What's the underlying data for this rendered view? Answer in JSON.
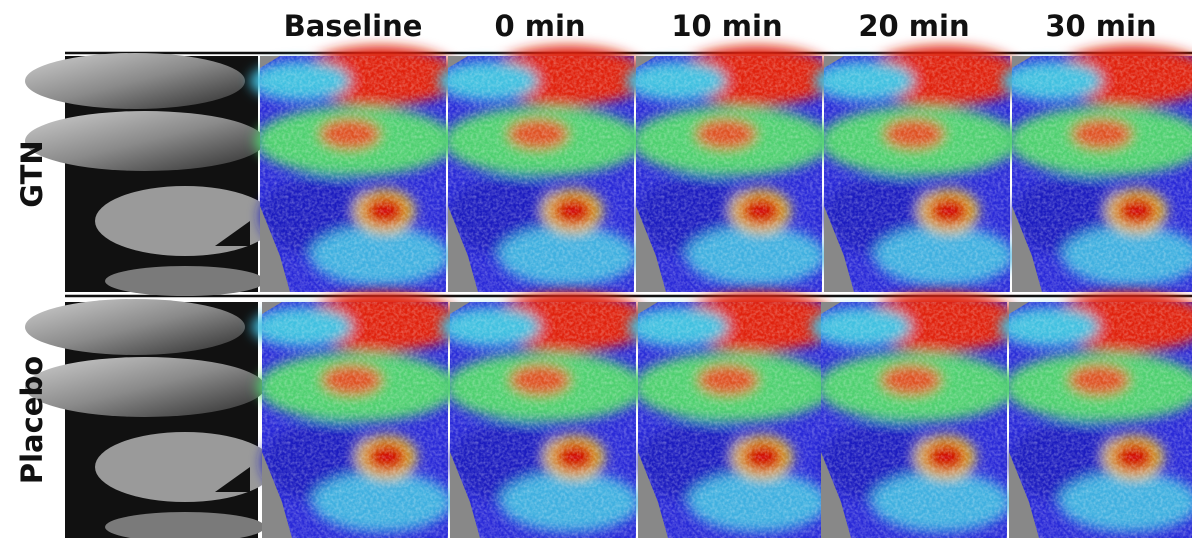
{
  "columns": [
    "Baseline",
    "0 min",
    "10 min",
    "20 min",
    "30 min"
  ],
  "rows": [
    "GTN",
    "Placebo"
  ]
}
